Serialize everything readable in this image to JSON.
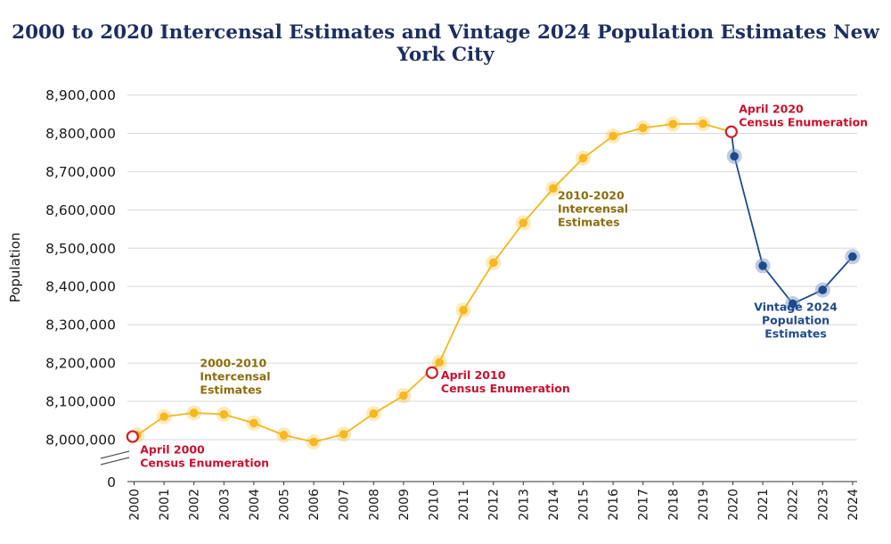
{
  "chart_data": {
    "type": "line",
    "title": "2000 to 2020 Intercensal Estimates and Vintage 2024 Population Estimates New York City",
    "xlabel": "",
    "ylabel": "Population",
    "ylim": [
      7960000,
      8920000
    ],
    "yticks": [
      8000000,
      8100000,
      8200000,
      8300000,
      8400000,
      8500000,
      8600000,
      8700000,
      8800000,
      8900000
    ],
    "ytick_labels": [
      "8,000,000",
      "8,100,000",
      "8,200,000",
      "8,300,000",
      "8,400,000",
      "8,500,000",
      "8,600,000",
      "8,700,000",
      "8,800,000",
      "8,900,000"
    ],
    "y_zero_label": "0",
    "axis_break": true,
    "grid": true,
    "categories": [
      "2000",
      "2001",
      "2002",
      "2003",
      "2004",
      "2005",
      "2006",
      "2007",
      "2008",
      "2009",
      "2010",
      "2011",
      "2012",
      "2013",
      "2014",
      "2015",
      "2016",
      "2017",
      "2018",
      "2019",
      "2020",
      "2021",
      "2022",
      "2023",
      "2024"
    ],
    "series": [
      {
        "name": "Intercensal Estimates",
        "color": "#f5b820",
        "x": [
          2000.1,
          2001,
          2002,
          2003,
          2004,
          2005,
          2006,
          2007,
          2008,
          2009,
          2010.2,
          2011,
          2012,
          2013,
          2014,
          2015,
          2016,
          2017,
          2018,
          2019
        ],
        "values": [
          8012000,
          8060000,
          8070000,
          8066000,
          8043000,
          8012000,
          7994000,
          8014000,
          8068000,
          8115000,
          8202000,
          8338000,
          8462000,
          8566000,
          8656000,
          8735000,
          8793000,
          8814000,
          8824000,
          8825000
        ]
      },
      {
        "name": "Vintage 2024 Population Estimates",
        "color": "#1f4a8a",
        "x": [
          2020.05,
          2021,
          2022,
          2023,
          2024
        ],
        "values": [
          8740000,
          8454000,
          8355000,
          8391000,
          8478000
        ]
      },
      {
        "name": "Census Enumeration",
        "color": "#d0202a",
        "x": [
          1999.95,
          2009.95,
          2019.95
        ],
        "values": [
          8008000,
          8175000,
          8804000
        ]
      }
    ],
    "connectors": [
      {
        "from": [
          2009.95,
          8175000
        ],
        "to": [
          2010.2,
          8202000
        ],
        "color": "#f5b820"
      },
      {
        "from": [
          2019,
          8825000
        ],
        "to": [
          2019.95,
          8804000
        ],
        "color": "#f5b820"
      },
      {
        "from": [
          2019.95,
          8804000
        ],
        "to": [
          2020.05,
          8740000
        ],
        "color": "#1f4a8a"
      }
    ],
    "annotations": [
      {
        "lines": [
          "April 2000",
          "Census Enumeration"
        ],
        "color": "#c8102e",
        "x": 2000.2,
        "y": 7964000,
        "anchor": "start"
      },
      {
        "lines": [
          "April 2010",
          "Census Enumeration"
        ],
        "color": "#c8102e",
        "x": 2010.25,
        "y": 8158000,
        "anchor": "start"
      },
      {
        "lines": [
          "April 2020",
          "Census Enumeration"
        ],
        "color": "#c8102e",
        "x": 2020.2,
        "y": 8853000,
        "anchor": "start"
      },
      {
        "lines": [
          "2000-2010",
          "Intercensal",
          "Estimates"
        ],
        "color": "#8a6d0b",
        "x": 2002.2,
        "y": 8190000,
        "anchor": "start"
      },
      {
        "lines": [
          "2010-2020",
          "Intercensal",
          "Estimates"
        ],
        "color": "#8a6d0b",
        "x": 2014.15,
        "y": 8628000,
        "anchor": "start"
      },
      {
        "lines": [
          "Vintage 2024",
          "Population",
          "Estimates"
        ],
        "color": "#1f4a8a",
        "x": 2022.1,
        "y": 8337000,
        "anchor": "middle"
      }
    ]
  }
}
